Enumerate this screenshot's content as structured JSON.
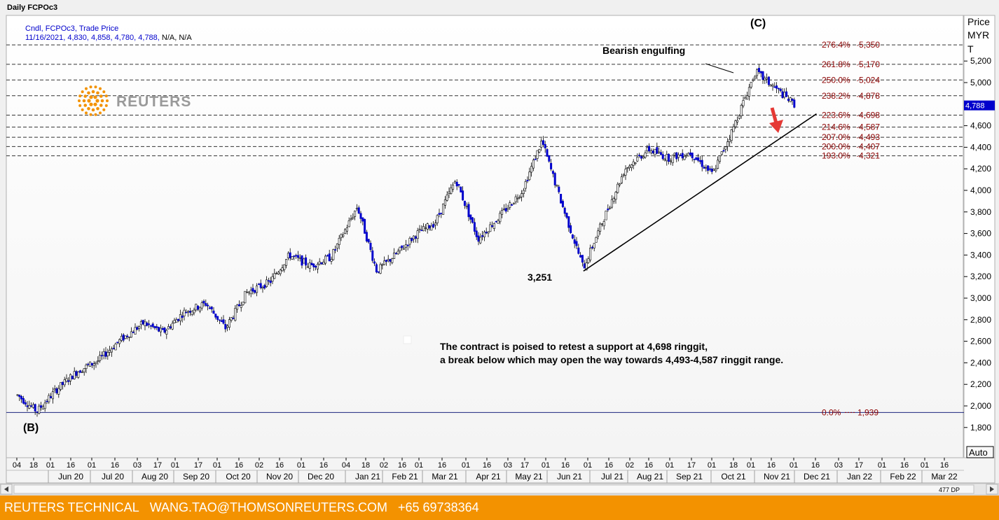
{
  "window_title": "Daily FCPOc3",
  "legend": {
    "line1": "Cndl, FCPOc3, Trade Price",
    "line2_values": "11/16/2021, 4,830, 4,858, 4,780, 4,788,",
    "line2_na": " N/A, N/A"
  },
  "logo_text": "REUTERS",
  "price_axis": {
    "title": "Price",
    "unit_line1": "MYR",
    "unit_line2": "T",
    "last_price_tag": "4,788",
    "auto_button": "Auto"
  },
  "annotations": {
    "wave_c": "(C)",
    "wave_b": "(B)",
    "bearish": "Bearish engulfing",
    "low_label": "3,251",
    "comment_line1": "The contract is poised to retest a support at 4,698 ringgit,",
    "comment_line2": "a break below which may open the way towards 4,493-4,587 ringgit range."
  },
  "fib_levels": [
    {
      "label": "276.4%",
      "value_label": "5,350",
      "value": 5350
    },
    {
      "label": "261.8%",
      "value_label": "5,170",
      "value": 5170
    },
    {
      "label": "250.0%",
      "value_label": "5,024",
      "value": 5024
    },
    {
      "label": "238.2%",
      "value_label": "4,878",
      "value": 4878
    },
    {
      "label": "223.6%",
      "value_label": "4,698",
      "value": 4698
    },
    {
      "label": "214.6%",
      "value_label": "4,587",
      "value": 4587
    },
    {
      "label": "207.0%",
      "value_label": "4,493",
      "value": 4493
    },
    {
      "label": "200.0%",
      "value_label": "4,407",
      "value": 4407
    },
    {
      "label": "193.0%",
      "value_label": "4,321",
      "value": 4321
    },
    {
      "label": "0.0%",
      "value_label": "1,939",
      "value": 1939
    }
  ],
  "x_axis": {
    "day_ticks": [
      "04",
      "18",
      "01",
      "16",
      "01",
      "16",
      "03",
      "17",
      "01",
      "17",
      "01",
      "16",
      "02",
      "16",
      "01",
      "16",
      "04",
      "18",
      "02",
      "16",
      "01",
      "16",
      "01",
      "16",
      "03",
      "17",
      "01",
      "16",
      "01",
      "16",
      "02",
      "16",
      "01",
      "17",
      "01",
      "18",
      "01",
      "16",
      "01",
      "16",
      "03",
      "17",
      "01",
      "16",
      "01",
      "16"
    ],
    "month_labels": [
      "Jun 20",
      "Jul 20",
      "Aug 20",
      "Sep 20",
      "Oct 20",
      "Nov 20",
      "Dec 20",
      "Jan 21",
      "Feb 21",
      "Mar 21",
      "Apr 21",
      "May 21",
      "Jun 21",
      "Jul 21",
      "Aug 21",
      "Sep 21",
      "Oct 21",
      "Nov 21",
      "Dec 21",
      "Jan 22",
      "Feb 22",
      "Mar 22"
    ],
    "scroll_tag": "477 DP"
  },
  "footer": {
    "brand": "REUTERS TECHNICAL",
    "email": "WANG.TAO@THOMSONREUTERS.COM",
    "phone": "+65 69738364"
  },
  "colors": {
    "bull_candle": "#ffffff",
    "bear_candle": "#0000cc",
    "fib_text": "#8b0000",
    "footer_bg": "#f39200",
    "legend_text": "#0000cc"
  },
  "chart_data": {
    "type": "candlestick",
    "title": "Daily FCPOc3",
    "ylabel": "Price MYR T",
    "ylim": [
      1700,
      5450
    ],
    "yticks": [
      1800,
      2000,
      2200,
      2400,
      2600,
      2800,
      3000,
      3200,
      3400,
      3600,
      3800,
      4000,
      4200,
      4400,
      4600,
      4800,
      5000,
      5200
    ],
    "last_bar": {
      "date": "11/16/2021",
      "open": 4830,
      "high": 4858,
      "low": 4780,
      "close": 4788
    },
    "price_path": [
      {
        "date": "2020-05-04",
        "close": 2100
      },
      {
        "date": "2020-05-18",
        "close": 1950
      },
      {
        "date": "2020-06-01",
        "close": 2150
      },
      {
        "date": "2020-06-16",
        "close": 2320
      },
      {
        "date": "2020-07-01",
        "close": 2420
      },
      {
        "date": "2020-07-16",
        "close": 2600
      },
      {
        "date": "2020-08-03",
        "close": 2770
      },
      {
        "date": "2020-08-17",
        "close": 2680
      },
      {
        "date": "2020-09-01",
        "close": 2870
      },
      {
        "date": "2020-09-17",
        "close": 2950
      },
      {
        "date": "2020-10-01",
        "close": 2720
      },
      {
        "date": "2020-10-16",
        "close": 3050
      },
      {
        "date": "2020-11-02",
        "close": 3150
      },
      {
        "date": "2020-11-16",
        "close": 3400
      },
      {
        "date": "2020-12-01",
        "close": 3300
      },
      {
        "date": "2020-12-16",
        "close": 3380
      },
      {
        "date": "2021-01-04",
        "close": 3850
      },
      {
        "date": "2021-01-18",
        "close": 3250
      },
      {
        "date": "2021-02-02",
        "close": 3420
      },
      {
        "date": "2021-02-16",
        "close": 3600
      },
      {
        "date": "2021-03-01",
        "close": 3700
      },
      {
        "date": "2021-03-16",
        "close": 4100
      },
      {
        "date": "2021-04-01",
        "close": 3550
      },
      {
        "date": "2021-04-16",
        "close": 3750
      },
      {
        "date": "2021-05-03",
        "close": 4000
      },
      {
        "date": "2021-05-17",
        "close": 4460
      },
      {
        "date": "2021-06-01",
        "close": 3850
      },
      {
        "date": "2021-06-16",
        "close": 3280
      },
      {
        "date": "2021-07-01",
        "close": 3750
      },
      {
        "date": "2021-07-16",
        "close": 4200
      },
      {
        "date": "2021-08-02",
        "close": 4380
      },
      {
        "date": "2021-08-16",
        "close": 4300
      },
      {
        "date": "2021-09-01",
        "close": 4350
      },
      {
        "date": "2021-09-17",
        "close": 4150
      },
      {
        "date": "2021-10-01",
        "close": 4550
      },
      {
        "date": "2021-10-18",
        "close": 5100
      },
      {
        "date": "2021-11-01",
        "close": 4950
      },
      {
        "date": "2021-11-16",
        "close": 4788
      }
    ],
    "trendline": {
      "from": {
        "date": "2021-06-16",
        "price": 3251
      },
      "to": {
        "date": "2021-12-01",
        "price": 4710
      }
    }
  }
}
